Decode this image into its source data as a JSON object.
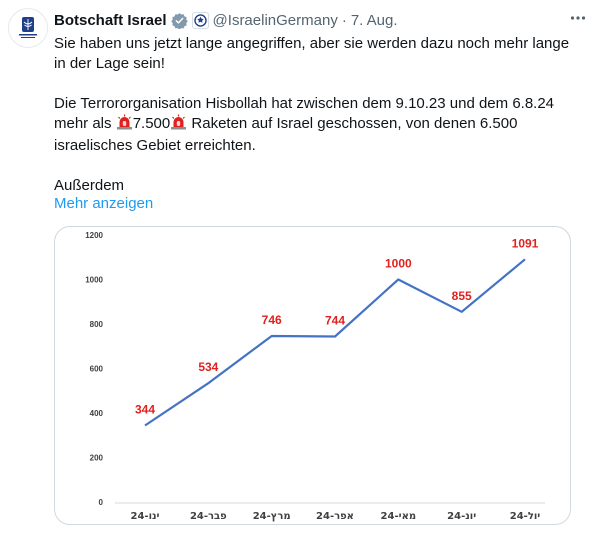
{
  "tweet": {
    "author": {
      "display_name": "Botschaft Israel",
      "handle": "@IsraelinGermany",
      "avatar_icon": "israel-emblem-icon",
      "verified_icon": "verified-badge-icon",
      "affiliate_icon": "affiliate-badge-icon"
    },
    "separator": "·",
    "date": "7. Aug.",
    "more_icon": "more-options-icon",
    "text": {
      "line1": "Sie haben uns jetzt lange angegriffen, aber sie werden dazu noch mehr lange in der Lage sein!",
      "para2_part1": "Die Terrororganisation Hisbollah hat zwischen dem 9.10.23 und dem 6.8.24 mehr als ",
      "para2_num": "7.500",
      "para2_part2": " Raketen auf Israel geschossen, von denen 6.500 israelisches Gebiet erreichten.",
      "line3": "Außerdem",
      "emoji_icon": "siren-icon"
    },
    "show_more": "Mehr anzeigen"
  },
  "chart_data": {
    "type": "line",
    "categories": [
      "ינו-24",
      "פבר-24",
      "מרץ-24",
      "אפר-24",
      "מאי-24",
      "יונ-24",
      "יול-24"
    ],
    "values": [
      344,
      534,
      746,
      744,
      1000,
      855,
      1091
    ],
    "data_labels": [
      "344",
      "534",
      "746",
      "744",
      "1000",
      "855",
      "1091"
    ],
    "y_ticks": [
      "0",
      "200",
      "400",
      "600",
      "800",
      "1000",
      "1200"
    ],
    "ylim": [
      0,
      1200
    ],
    "title": "",
    "xlabel": "",
    "ylabel": "",
    "grid": false,
    "line_color": "#4472c4",
    "label_color": "#e0211f"
  }
}
